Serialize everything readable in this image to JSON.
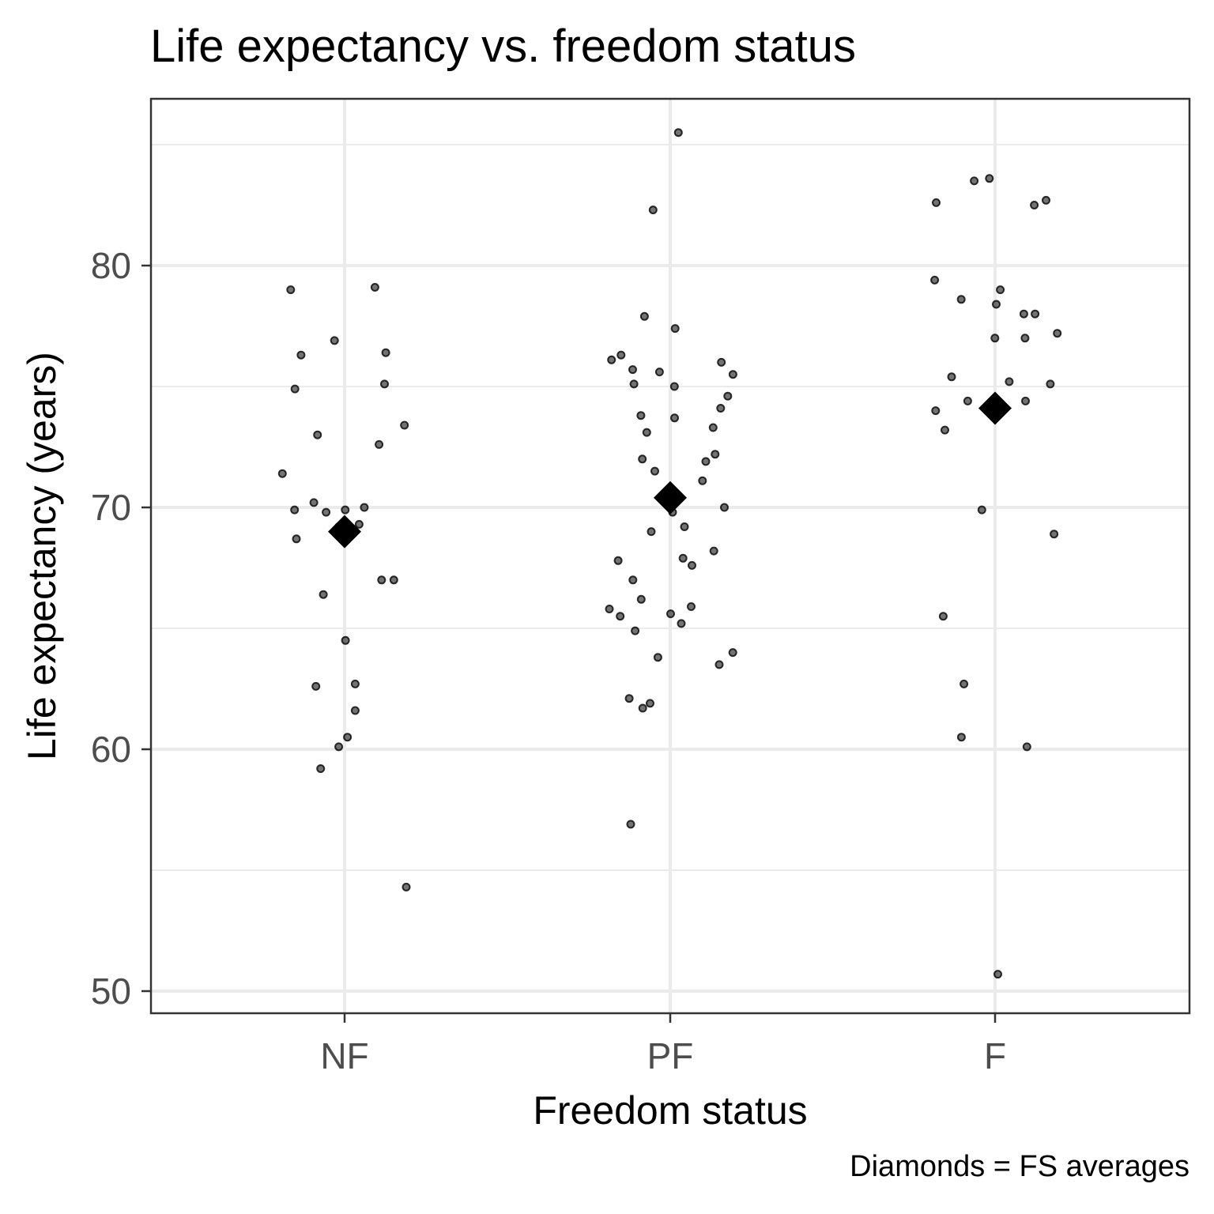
{
  "chart_data": {
    "type": "scatter",
    "title": "Life expectancy vs. freedom status",
    "xlabel": "Freedom status",
    "ylabel": "Life expectancy (years)",
    "caption": "Diamonds = FS averages",
    "categories": [
      "NF",
      "PF",
      "F"
    ],
    "ylim": [
      49,
      85.5
    ],
    "yticks": [
      50,
      60,
      70,
      80
    ],
    "grid": true,
    "legend": "none",
    "point_color": "#000000",
    "series": [
      {
        "category": "NF",
        "values": [
          79.1,
          79.0,
          76.9,
          76.4,
          76.3,
          75.1,
          74.9,
          73.4,
          73.0,
          72.6,
          71.4,
          70.2,
          70.0,
          69.9,
          69.9,
          69.8,
          69.3,
          69.2,
          68.8,
          68.7,
          67.0,
          67.0,
          66.4,
          64.5,
          62.7,
          62.6,
          61.6,
          60.5,
          60.1,
          59.2,
          54.3
        ],
        "mean": 69.0
      },
      {
        "category": "PF",
        "values": [
          85.5,
          82.3,
          77.9,
          77.4,
          76.3,
          76.1,
          76.0,
          75.7,
          75.6,
          75.5,
          75.1,
          75.0,
          74.6,
          74.1,
          73.8,
          73.7,
          73.3,
          73.1,
          72.2,
          72.0,
          71.9,
          71.5,
          71.1,
          70.0,
          69.8,
          69.2,
          69.0,
          68.2,
          67.9,
          67.8,
          67.6,
          67.0,
          66.2,
          65.9,
          65.8,
          65.6,
          65.5,
          65.2,
          64.9,
          64.0,
          63.8,
          63.5,
          62.1,
          61.9,
          61.7,
          56.9
        ],
        "mean": 70.4
      },
      {
        "category": "F",
        "values": [
          83.6,
          83.5,
          82.7,
          82.6,
          82.5,
          79.4,
          79.0,
          78.6,
          78.4,
          78.0,
          78.0,
          77.2,
          77.0,
          77.0,
          75.4,
          75.2,
          75.1,
          74.4,
          74.4,
          74.0,
          73.2,
          69.9,
          68.9,
          65.5,
          62.7,
          60.5,
          60.1,
          50.7
        ],
        "mean": 74.1
      }
    ]
  }
}
